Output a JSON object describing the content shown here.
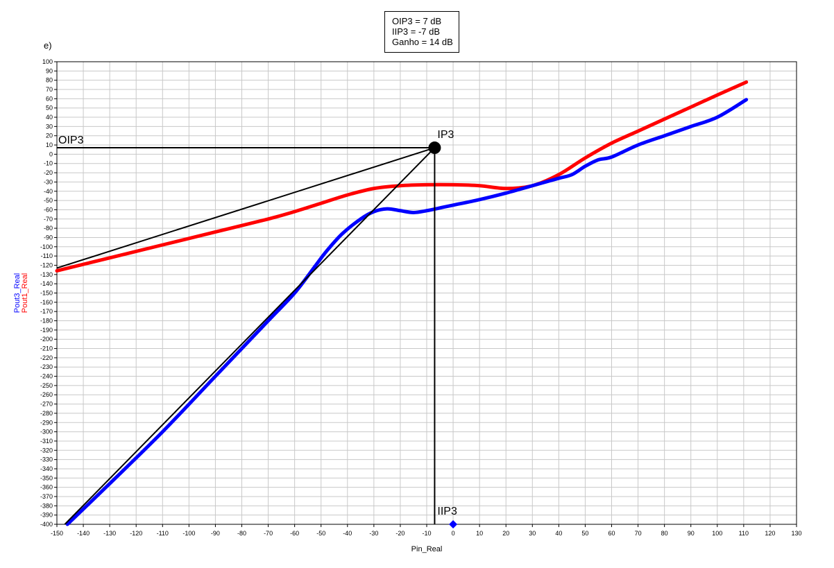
{
  "panel_label": "e)",
  "info_box": [
    "OIP3 = 7 dB",
    "IIP3 = -7 dB",
    "Ganho = 14 dB"
  ],
  "chart_data": {
    "type": "line",
    "xlabel": "Pin_Real",
    "ylabel_lines": [
      {
        "text": "Pout3_Real",
        "color": "#0000ff"
      },
      {
        "text": "Pout1_Real",
        "color": "#ff0000"
      }
    ],
    "xlim": [
      -150,
      130
    ],
    "ylim": [
      -400,
      100
    ],
    "xticks": [
      -150,
      -140,
      -130,
      -120,
      -110,
      -100,
      -90,
      -80,
      -70,
      -60,
      -50,
      -40,
      -30,
      -20,
      -10,
      0,
      10,
      20,
      30,
      40,
      50,
      60,
      70,
      80,
      90,
      100,
      110,
      120,
      130
    ],
    "yticks": [
      100,
      90,
      80,
      70,
      60,
      50,
      40,
      30,
      20,
      10,
      0,
      -10,
      -20,
      -30,
      -40,
      -50,
      -60,
      -70,
      -80,
      -90,
      -100,
      -110,
      -120,
      -130,
      -140,
      -150,
      -160,
      -170,
      -180,
      -190,
      -200,
      -210,
      -220,
      -230,
      -240,
      -250,
      -260,
      -270,
      -280,
      -290,
      -300,
      -310,
      -320,
      -330,
      -340,
      -350,
      -360,
      -370,
      -380,
      -390,
      -400
    ],
    "grid": true,
    "series": [
      {
        "name": "Pout1_Real",
        "color": "#ff0000",
        "points": [
          [
            -150,
            -126
          ],
          [
            -130,
            -112
          ],
          [
            -110,
            -98
          ],
          [
            -90,
            -84
          ],
          [
            -70,
            -70
          ],
          [
            -60,
            -62
          ],
          [
            -50,
            -53
          ],
          [
            -40,
            -44
          ],
          [
            -30,
            -37
          ],
          [
            -20,
            -34
          ],
          [
            -10,
            -33
          ],
          [
            0,
            -33
          ],
          [
            10,
            -34
          ],
          [
            20,
            -37
          ],
          [
            30,
            -34
          ],
          [
            40,
            -22
          ],
          [
            50,
            -4
          ],
          [
            60,
            12
          ],
          [
            70,
            25
          ],
          [
            80,
            38
          ],
          [
            90,
            51
          ],
          [
            100,
            64
          ],
          [
            111,
            78
          ]
        ]
      },
      {
        "name": "Pout3_Real",
        "color": "#0000ff",
        "points": [
          [
            -146,
            -400
          ],
          [
            -130,
            -356
          ],
          [
            -110,
            -300
          ],
          [
            -90,
            -240
          ],
          [
            -70,
            -180
          ],
          [
            -60,
            -150
          ],
          [
            -52,
            -120
          ],
          [
            -48,
            -105
          ],
          [
            -42,
            -86
          ],
          [
            -35,
            -70
          ],
          [
            -30,
            -62
          ],
          [
            -25,
            -59
          ],
          [
            -20,
            -61
          ],
          [
            -15,
            -63
          ],
          [
            -10,
            -61
          ],
          [
            -5,
            -58
          ],
          [
            0,
            -55
          ],
          [
            10,
            -49
          ],
          [
            20,
            -42
          ],
          [
            30,
            -34
          ],
          [
            40,
            -26
          ],
          [
            45,
            -22
          ],
          [
            50,
            -13
          ],
          [
            55,
            -6
          ],
          [
            60,
            -3
          ],
          [
            70,
            10
          ],
          [
            80,
            20
          ],
          [
            90,
            30
          ],
          [
            100,
            40
          ],
          [
            111,
            59
          ]
        ]
      }
    ],
    "reference_lines": [
      {
        "name": "fundamental-extrapolation",
        "color": "#000000",
        "points": [
          [
            -150,
            -123
          ],
          [
            -7,
            7
          ]
        ]
      },
      {
        "name": "third-order-extrapolation",
        "color": "#000000",
        "points": [
          [
            -147,
            -400
          ],
          [
            -7,
            7
          ]
        ]
      },
      {
        "name": "oip3-horizontal",
        "color": "#000000",
        "points": [
          [
            -150,
            7
          ],
          [
            -7,
            7
          ]
        ]
      },
      {
        "name": "iip3-vertical",
        "color": "#000000",
        "points": [
          [
            -7,
            7
          ],
          [
            -7,
            -400
          ]
        ]
      }
    ],
    "annotations": [
      {
        "text": "OIP3",
        "x": -150,
        "y": 7
      },
      {
        "text": "IP3",
        "x": -7,
        "y": 7
      },
      {
        "text": "IIP3",
        "x": -7,
        "y": -400
      }
    ],
    "markers": [
      {
        "name": "ip3-point",
        "x": -7,
        "y": 7,
        "color": "#000000"
      },
      {
        "name": "iip3-marker",
        "x": 0,
        "y": -400,
        "color": "#0000ff"
      }
    ]
  }
}
